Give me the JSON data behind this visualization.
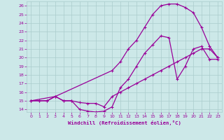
{
  "xlabel": "Windchill (Refroidissement éolien,°C)",
  "xlim": [
    -0.5,
    23.5
  ],
  "ylim": [
    13.7,
    26.5
  ],
  "xticks": [
    0,
    1,
    2,
    3,
    4,
    5,
    6,
    7,
    8,
    9,
    10,
    11,
    12,
    13,
    14,
    15,
    16,
    17,
    18,
    19,
    20,
    21,
    22,
    23
  ],
  "yticks": [
    14,
    15,
    16,
    17,
    18,
    19,
    20,
    21,
    22,
    23,
    24,
    25,
    26
  ],
  "bg_color": "#cce8e8",
  "line_color": "#990099",
  "grid_color": "#aacccc",
  "line1_x": [
    0,
    1,
    2,
    3,
    4,
    5,
    6,
    7,
    8,
    9,
    10,
    11,
    12,
    13,
    14,
    15,
    16,
    17,
    18,
    19,
    20,
    21,
    22,
    23
  ],
  "line1_y": [
    15,
    15,
    15,
    15.5,
    15,
    15,
    14.8,
    14.7,
    14.7,
    14.3,
    15.5,
    16.0,
    16.5,
    17.0,
    17.5,
    18.0,
    18.5,
    19.0,
    19.5,
    20.0,
    20.5,
    21.0,
    21.0,
    20.0
  ],
  "line2_x": [
    0,
    1,
    2,
    3,
    4,
    5,
    6,
    7,
    8,
    9,
    10,
    11,
    12,
    13,
    14,
    15,
    16,
    17,
    18,
    19,
    20,
    21,
    22,
    23
  ],
  "line2_y": [
    15,
    15,
    15,
    15.5,
    15,
    15,
    14,
    13.8,
    13.7,
    13.8,
    14.3,
    16.5,
    17.5,
    19.0,
    20.5,
    21.5,
    22.5,
    22.3,
    17.5,
    19.0,
    21.0,
    21.3,
    19.8,
    19.8
  ],
  "line3_x": [
    0,
    3,
    10,
    11,
    12,
    13,
    14,
    15,
    16,
    17,
    18,
    19,
    20,
    21,
    22,
    23
  ],
  "line3_y": [
    15,
    15.5,
    18.5,
    19.5,
    21.0,
    22.0,
    23.5,
    25.0,
    26.0,
    26.2,
    26.2,
    25.8,
    25.2,
    23.5,
    21.3,
    20.0
  ]
}
